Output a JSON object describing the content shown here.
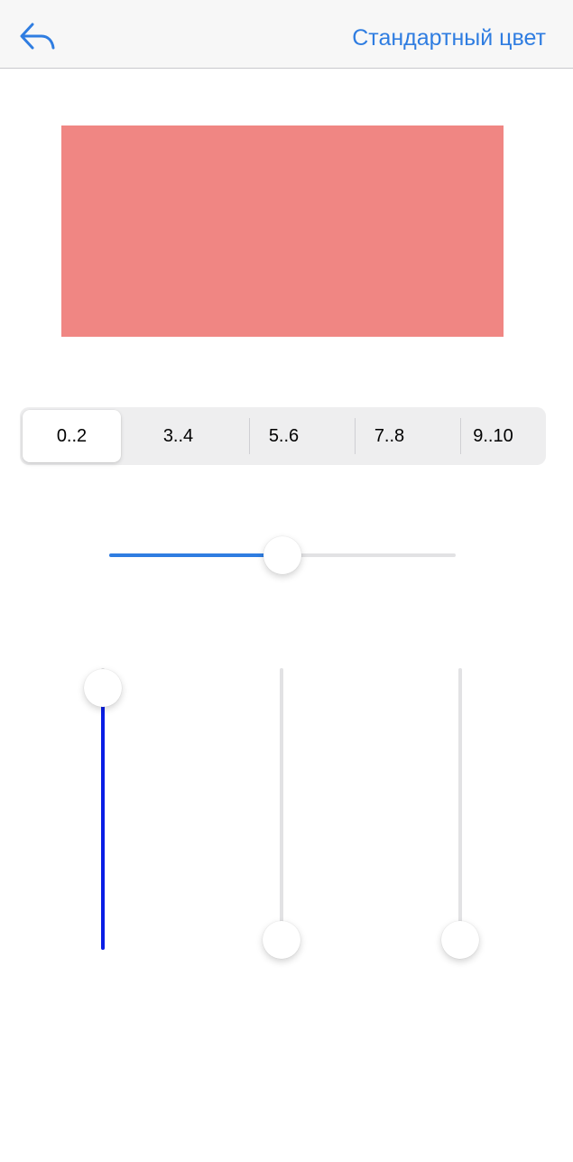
{
  "nav": {
    "back_icon": "reply-arrow-icon",
    "action_label": "Стандартный цвет",
    "tint_color": "#2f7de1"
  },
  "preview": {
    "color": "#f08683"
  },
  "segments": {
    "items": [
      "0..2",
      "3..4",
      "5..6",
      "7..8",
      "9..10"
    ],
    "selected_index": 0
  },
  "brightness_slider": {
    "value": 0.5,
    "fill_color": "#2f7de1"
  },
  "vertical_sliders": [
    {
      "value": 0.93,
      "fill_color": "#0a1ee6"
    },
    {
      "value": 0.0,
      "fill_color": "#2f7de1"
    },
    {
      "value": 0.0,
      "fill_color": "#2f7de1"
    }
  ]
}
